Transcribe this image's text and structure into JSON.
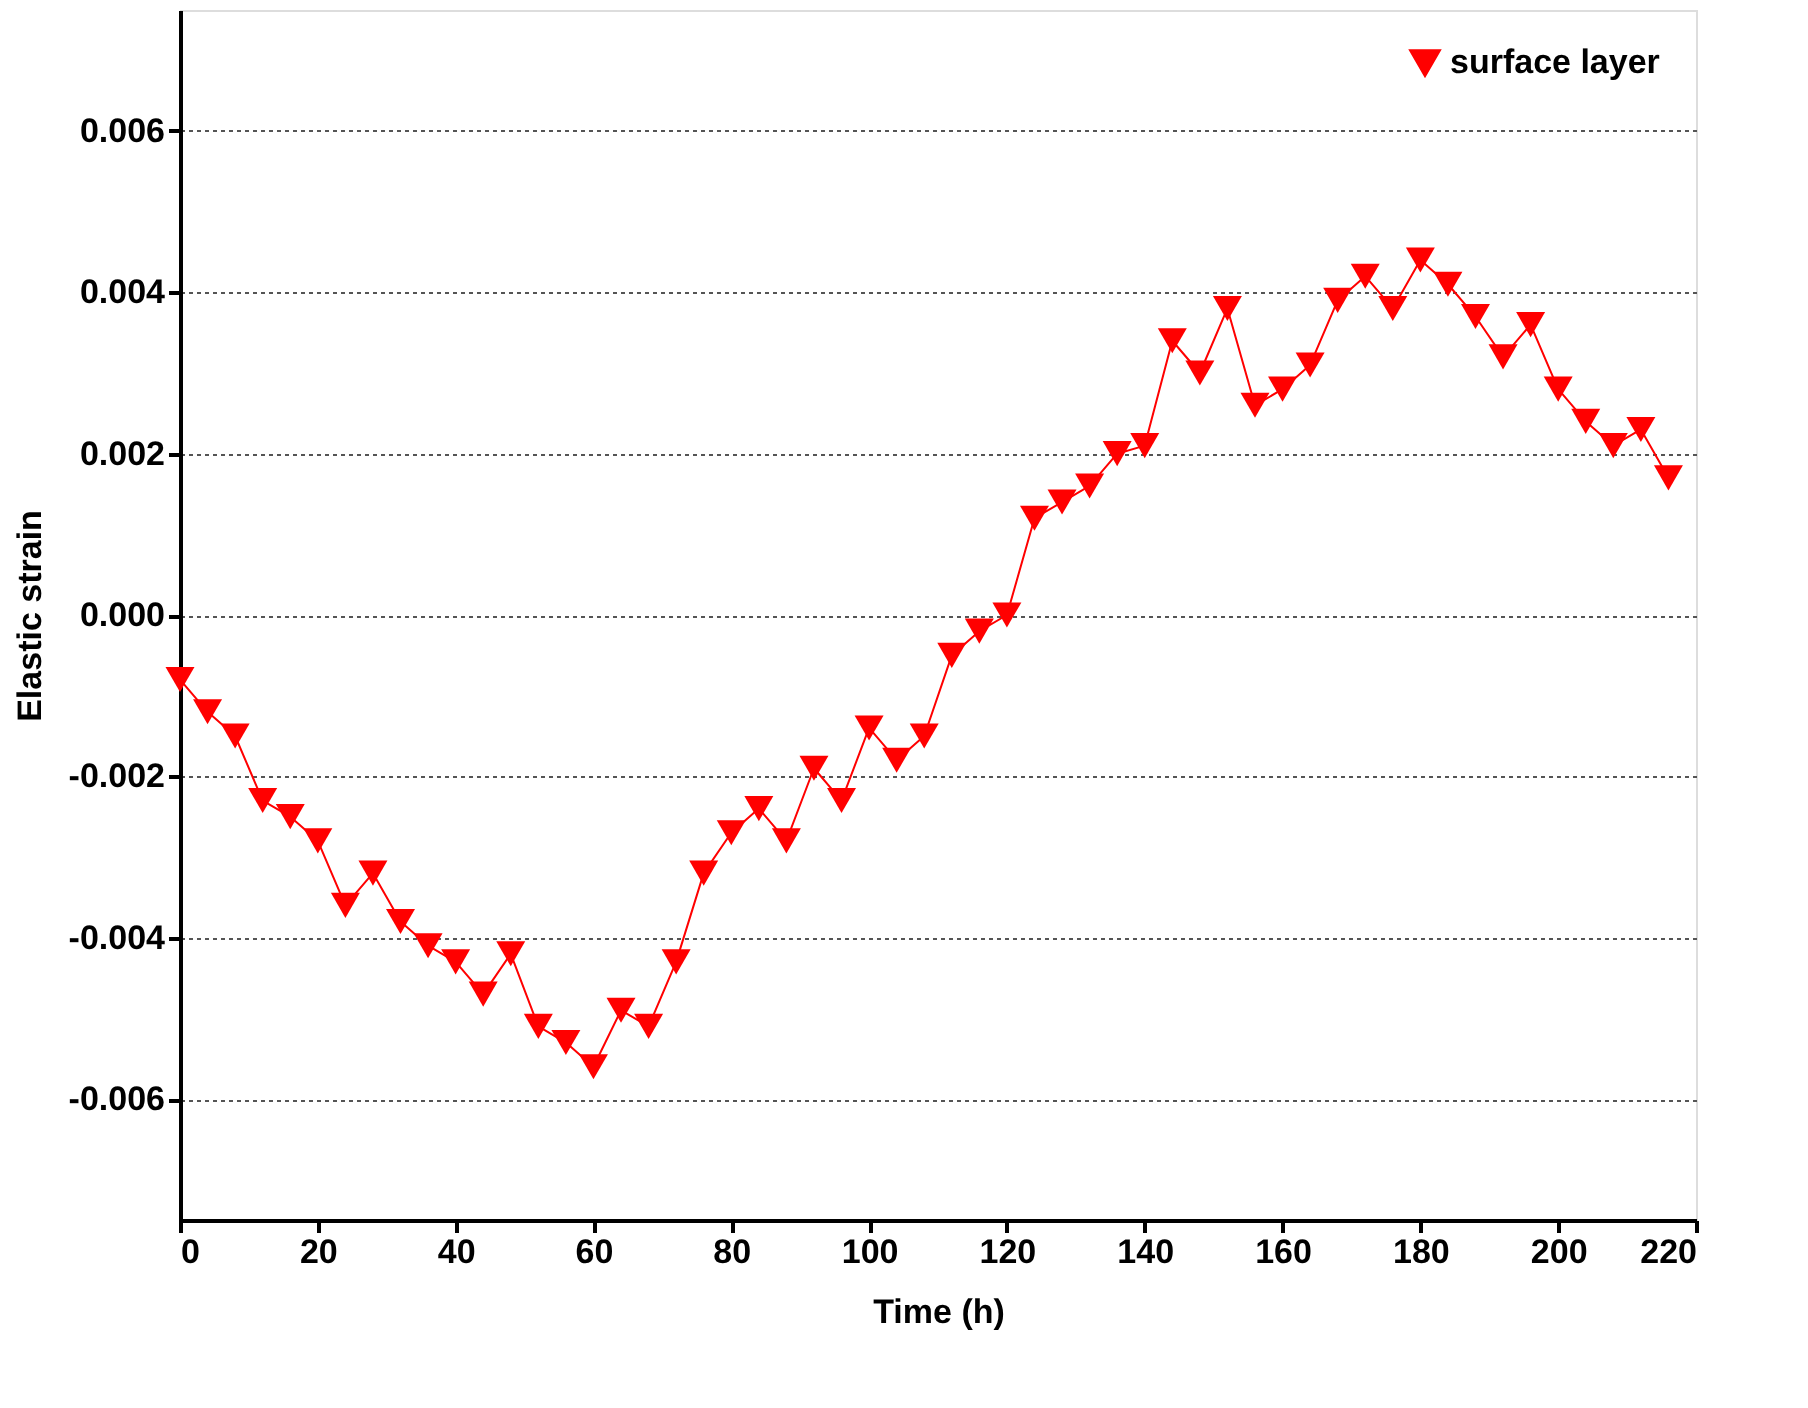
{
  "chart_data": {
    "type": "line",
    "xlabel": "Time (h)",
    "ylabel": "Elastic strain",
    "x": [
      0,
      4,
      8,
      12,
      16,
      20,
      24,
      28,
      32,
      36,
      40,
      44,
      48,
      52,
      56,
      60,
      64,
      68,
      72,
      76,
      80,
      84,
      88,
      92,
      96,
      100,
      104,
      108,
      112,
      116,
      120,
      124,
      128,
      132,
      136,
      140,
      144,
      148,
      152,
      156,
      160,
      164,
      168,
      172,
      176,
      180,
      184,
      188,
      192,
      196,
      200,
      204,
      208,
      212,
      216
    ],
    "series": [
      {
        "name": "surface layer",
        "color": "#ff0000",
        "values": [
          -0.0008,
          -0.0012,
          -0.0015,
          -0.0023,
          -0.0025,
          -0.0028,
          -0.0036,
          -0.0032,
          -0.0038,
          -0.0041,
          -0.0043,
          -0.0047,
          -0.0042,
          -0.0051,
          -0.0053,
          -0.0056,
          -0.0049,
          -0.0051,
          -0.0043,
          -0.0032,
          -0.0027,
          -0.0024,
          -0.0028,
          -0.0019,
          -0.0023,
          -0.0014,
          -0.0018,
          -0.0015,
          -0.0005,
          -0.0002,
          0.0,
          0.0012,
          0.0014,
          0.0016,
          0.002,
          0.0021,
          0.0034,
          0.003,
          0.0038,
          0.0026,
          0.0028,
          0.0031,
          0.0039,
          0.0042,
          0.0038,
          0.0044,
          0.0041,
          0.0037,
          0.0032,
          0.0036,
          0.0028,
          0.0024,
          0.0021,
          0.0023,
          0.0017
        ]
      }
    ],
    "xlim": [
      0,
      220
    ],
    "xticks": [
      0,
      20,
      40,
      60,
      80,
      100,
      120,
      140,
      160,
      180,
      200,
      220
    ],
    "ylim": [
      -0.0075,
      0.0075
    ],
    "yticks": [
      {
        "value": -0.006,
        "label": "-0.006"
      },
      {
        "value": -0.004,
        "label": "-0.004"
      },
      {
        "value": -0.002,
        "label": "-0.002"
      },
      {
        "value": 0,
        "label": "0.000"
      },
      {
        "value": 0.002,
        "label": "0.002"
      },
      {
        "value": 0.004,
        "label": "0.004"
      },
      {
        "value": 0.006,
        "label": "0.006"
      }
    ],
    "grid": "y",
    "legend": "top right",
    "marker": "triangle",
    "line_style": "solid"
  }
}
